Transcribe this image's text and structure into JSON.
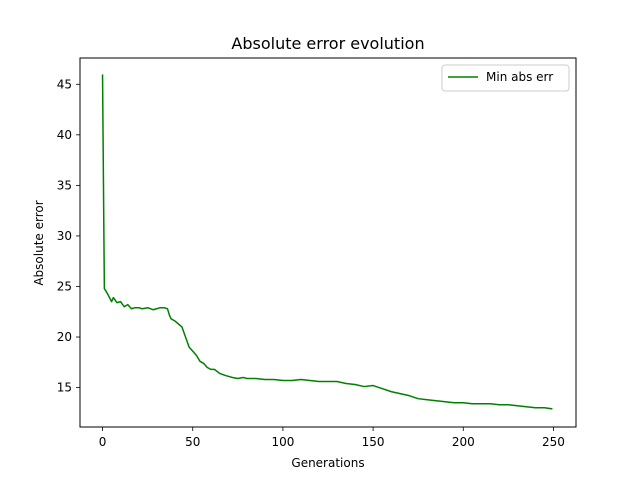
{
  "chart_data": {
    "type": "line",
    "title": "Absolute error evolution",
    "xlabel": "Generations",
    "ylabel": "Absolute error",
    "xlim": [
      -12.5,
      262.5
    ],
    "ylim": [
      11.1,
      47.6
    ],
    "xticks": [
      0,
      50,
      100,
      150,
      200,
      250
    ],
    "yticks": [
      15,
      20,
      25,
      30,
      35,
      40,
      45
    ],
    "grid": false,
    "legend_position": "top-right",
    "series": [
      {
        "name": "Min abs err",
        "color": "#008000",
        "x": [
          0,
          1,
          3,
          5,
          6,
          8,
          10,
          12,
          14,
          16,
          18,
          20,
          22,
          25,
          28,
          30,
          32,
          34,
          36,
          37,
          38,
          40,
          42,
          44,
          46,
          48,
          50,
          52,
          54,
          56,
          58,
          60,
          62,
          65,
          68,
          70,
          72,
          75,
          78,
          80,
          85,
          90,
          95,
          100,
          105,
          110,
          115,
          120,
          125,
          130,
          135,
          140,
          145,
          150,
          155,
          160,
          165,
          170,
          175,
          180,
          185,
          190,
          195,
          200,
          205,
          210,
          215,
          220,
          225,
          230,
          235,
          240,
          245,
          249
        ],
        "y": [
          45.9,
          24.8,
          24.2,
          23.5,
          23.9,
          23.4,
          23.5,
          23.0,
          23.2,
          22.8,
          22.9,
          22.9,
          22.8,
          22.9,
          22.7,
          22.8,
          22.9,
          22.9,
          22.8,
          22.2,
          21.8,
          21.6,
          21.3,
          21.0,
          20.0,
          19.0,
          18.6,
          18.2,
          17.6,
          17.4,
          17.0,
          16.8,
          16.8,
          16.4,
          16.2,
          16.1,
          16.0,
          15.9,
          16.0,
          15.9,
          15.9,
          15.8,
          15.8,
          15.7,
          15.7,
          15.8,
          15.7,
          15.6,
          15.6,
          15.6,
          15.4,
          15.3,
          15.1,
          15.2,
          14.9,
          14.6,
          14.4,
          14.2,
          13.9,
          13.8,
          13.7,
          13.6,
          13.5,
          13.5,
          13.4,
          13.4,
          13.4,
          13.3,
          13.3,
          13.2,
          13.1,
          13.0,
          13.0,
          12.9
        ]
      }
    ]
  }
}
